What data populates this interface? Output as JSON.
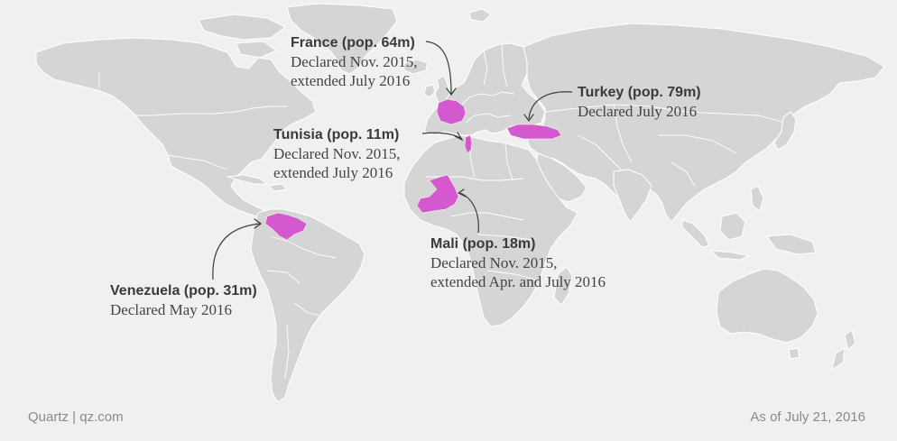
{
  "colors": {
    "background": "#f0f0f0",
    "land": "#d5d5d5",
    "highlight": "#d459cf",
    "text": "#3a3a3a",
    "footer": "#8a8a8a"
  },
  "countries": [
    {
      "id": "france",
      "name": "France (pop. 64m)",
      "details": [
        "Declared Nov. 2015,",
        "extended July 2016"
      ]
    },
    {
      "id": "tunisia",
      "name": "Tunisia (pop. 11m)",
      "details": [
        "Declared Nov. 2015,",
        "extended July 2016"
      ]
    },
    {
      "id": "turkey",
      "name": "Turkey (pop. 79m)",
      "details": [
        "Declared July 2016"
      ]
    },
    {
      "id": "mali",
      "name": "Mali (pop. 18m)",
      "details": [
        "Declared Nov. 2015,",
        "extended Apr. and July 2016"
      ]
    },
    {
      "id": "venezuela",
      "name": "Venezuela (pop. 31m)",
      "details": [
        "Declared May 2016"
      ]
    }
  ],
  "footer": {
    "source": "Quartz | qz.com",
    "date": "As of July 21, 2016"
  }
}
